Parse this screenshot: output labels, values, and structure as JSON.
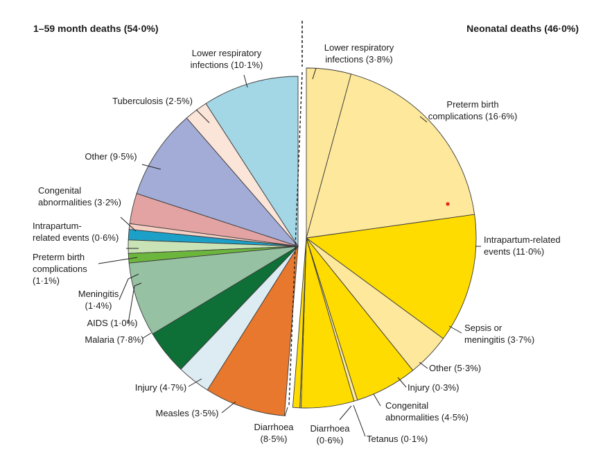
{
  "chart_data": {
    "type": "pie",
    "left_panel": {
      "title": "1–59 month deaths (54·0%)",
      "slices": [
        {
          "label": "Lower respiratory infections (10·1%)",
          "value": 10.1,
          "color": "#a3d7e6"
        },
        {
          "label": "Tuberculosis (2·5%)",
          "value": 2.5,
          "color": "#fbe4d8"
        },
        {
          "label": "Other (9·5%)",
          "value": 9.5,
          "color": "#a2acd6"
        },
        {
          "label": "Congenital abnormalities (3·2%)",
          "value": 3.2,
          "color": "#e3a3a3"
        },
        {
          "label": "Intrapartum-related events (0·6%)",
          "value": 0.6,
          "color": "#f4cfc4"
        },
        {
          "label": "Preterm birth complications (1·1%)",
          "value": 1.1,
          "color": "#1ca0c8"
        },
        {
          "label": "Meningitis (1·4%)",
          "value": 1.4,
          "color": "#c9e3b7"
        },
        {
          "label": "AIDS (1·0%)",
          "value": 1.0,
          "color": "#6db63e"
        },
        {
          "label": "Malaria (7·8%)",
          "value": 7.8,
          "color": "#97c1a3"
        },
        {
          "label": "Injury (4·7%)",
          "value": 4.7,
          "color": "#0e6f37"
        },
        {
          "label": "Measles (3·5%)",
          "value": 3.5,
          "color": "#dcecf2"
        },
        {
          "label": "Diarrhoea (8·5%)",
          "value": 8.5,
          "color": "#e8782d"
        }
      ]
    },
    "right_panel": {
      "title": "Neonatal deaths (46·0%)",
      "slices": [
        {
          "label": "Lower respiratory infections (3·8%)",
          "value": 3.8,
          "color": "#fde79a"
        },
        {
          "label": "Preterm birth complications (16·6%)",
          "value": 16.6,
          "color": "#fde89c"
        },
        {
          "label": "Intrapartum-related events (11·0%)",
          "value": 11.0,
          "color": "#fedc00"
        },
        {
          "label": "Sepsis or meningitis (3·7%)",
          "value": 3.7,
          "color": "#fde89c"
        },
        {
          "label": "Other (5·3%)",
          "value": 5.3,
          "color": "#fedc00"
        },
        {
          "label": "Injury (0·3%)",
          "value": 0.3,
          "color": "#fde89c"
        },
        {
          "label": "Congenital abnormalities (4·5%)",
          "value": 4.5,
          "color": "#fedc00"
        },
        {
          "label": "Tetanus (0·1%)",
          "value": 0.1,
          "color": "#fde89c"
        },
        {
          "label": "Diarrhoea (0·6%)",
          "value": 0.6,
          "color": "#fedc00"
        }
      ]
    }
  }
}
